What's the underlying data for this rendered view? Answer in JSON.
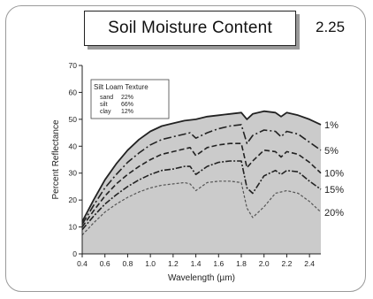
{
  "slide": {
    "title": "Soil Moisture Content",
    "number": "2.25"
  },
  "chart_data": {
    "type": "line",
    "xlabel": "Wavelength (µm)",
    "ylabel": "Percent Reflectance",
    "xlim": [
      0.4,
      2.5
    ],
    "ylim": [
      0,
      70
    ],
    "x_ticks": [
      0.4,
      0.6,
      0.8,
      1.0,
      1.2,
      1.4,
      1.6,
      1.8,
      2.0,
      2.2,
      2.4
    ],
    "y_ticks": [
      0,
      10,
      20,
      30,
      40,
      50,
      60,
      70
    ],
    "grid": false,
    "shaded_area_under_top_curve": true,
    "inset": {
      "title": "Silt Loam Texture",
      "rows": [
        {
          "name": "sand",
          "value": "22%"
        },
        {
          "name": "silt",
          "value": "66%"
        },
        {
          "name": "clay",
          "value": "12%"
        }
      ]
    },
    "series": [
      {
        "name": "1%",
        "style": "solid",
        "x": [
          0.4,
          0.5,
          0.6,
          0.7,
          0.8,
          0.9,
          1.0,
          1.1,
          1.2,
          1.3,
          1.4,
          1.5,
          1.6,
          1.7,
          1.8,
          1.85,
          1.9,
          2.0,
          2.1,
          2.15,
          2.2,
          2.3,
          2.4,
          2.5
        ],
        "y": [
          12,
          20,
          27.5,
          33.5,
          38.5,
          42.5,
          45.5,
          47.5,
          48.5,
          49.5,
          50,
          51,
          51.5,
          52,
          52.5,
          50,
          52,
          53,
          52.5,
          51,
          52.5,
          51.5,
          50,
          48
        ]
      },
      {
        "name": "5%",
        "style": "long-dash",
        "x": [
          0.4,
          0.5,
          0.6,
          0.7,
          0.8,
          0.9,
          1.0,
          1.1,
          1.2,
          1.3,
          1.35,
          1.4,
          1.5,
          1.6,
          1.7,
          1.8,
          1.85,
          1.9,
          2.0,
          2.1,
          2.15,
          2.2,
          2.3,
          2.4,
          2.5
        ],
        "y": [
          11,
          18,
          24.5,
          29.5,
          34,
          37.5,
          40.5,
          42.5,
          43.5,
          44.5,
          45,
          43,
          45,
          46.5,
          47.5,
          48,
          41,
          44,
          46,
          45.5,
          43.5,
          45.5,
          44.5,
          41.5,
          38.5
        ]
      },
      {
        "name": "10%",
        "style": "dash",
        "x": [
          0.4,
          0.5,
          0.6,
          0.7,
          0.8,
          0.9,
          1.0,
          1.1,
          1.2,
          1.3,
          1.35,
          1.4,
          1.5,
          1.6,
          1.7,
          1.8,
          1.85,
          1.9,
          2.0,
          2.1,
          2.15,
          2.2,
          2.3,
          2.4,
          2.5
        ],
        "y": [
          10,
          16,
          21.5,
          26,
          29.5,
          32.5,
          35,
          37,
          38,
          39,
          39.5,
          36.5,
          39.5,
          40.5,
          41,
          41,
          32,
          34.5,
          38.5,
          38,
          36,
          38,
          37,
          34,
          30
        ]
      },
      {
        "name": "15%",
        "style": "dash-dot",
        "x": [
          0.4,
          0.5,
          0.6,
          0.7,
          0.8,
          0.9,
          1.0,
          1.1,
          1.2,
          1.3,
          1.35,
          1.4,
          1.5,
          1.6,
          1.7,
          1.8,
          1.85,
          1.9,
          2.0,
          2.1,
          2.15,
          2.2,
          2.3,
          2.4,
          2.5
        ],
        "y": [
          9,
          14,
          18.5,
          22,
          25,
          27.5,
          29.5,
          31,
          31.5,
          32.5,
          32.5,
          29.5,
          32.5,
          34,
          34.5,
          34.5,
          24.5,
          22.5,
          29,
          31,
          29.5,
          31,
          30.5,
          27,
          24
        ]
      },
      {
        "name": "20%",
        "style": "fine-dash",
        "x": [
          0.4,
          0.5,
          0.6,
          0.7,
          0.8,
          0.9,
          1.0,
          1.1,
          1.2,
          1.3,
          1.35,
          1.4,
          1.5,
          1.6,
          1.7,
          1.8,
          1.85,
          1.9,
          2.0,
          2.1,
          2.15,
          2.2,
          2.3,
          2.4,
          2.5
        ],
        "y": [
          7,
          11.5,
          15.5,
          18.5,
          21,
          23,
          24.5,
          25.5,
          26,
          26.5,
          26,
          23.5,
          26.5,
          27,
          27,
          26.5,
          17,
          13.5,
          17.5,
          22.5,
          23,
          23.5,
          22.5,
          19.5,
          15.5
        ]
      }
    ]
  }
}
